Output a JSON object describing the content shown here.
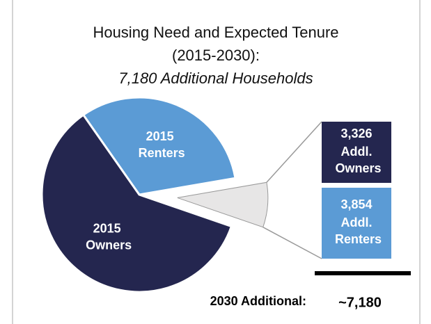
{
  "chart_data": [
    {
      "type": "pie",
      "title": "Housing Need and Expected Tenure",
      "title_line2": "(2015-2030):",
      "subtitle": "7,180 Additional Households",
      "categories": [
        "2015 Renters",
        null,
        "2015 Owners"
      ],
      "values": [
        32,
        8,
        60
      ],
      "colors": [
        "#5b9bd5",
        "#e7e6e6",
        "#24264f"
      ]
    },
    {
      "type": "stacked_bar",
      "label": "2030 Additional:",
      "total_label": "~7,180",
      "series": [
        {
          "name": "Addl. Renters",
          "color": "#5b9bd5",
          "values": [
            3854
          ],
          "value_labels": [
            "3,854"
          ]
        },
        {
          "name": "Addl. Owners",
          "color": "#24264f",
          "values": [
            3326
          ],
          "value_labels": [
            "3,326"
          ]
        }
      ]
    }
  ]
}
